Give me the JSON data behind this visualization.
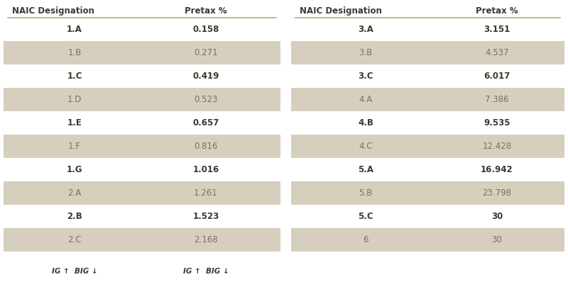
{
  "left_headers": [
    "NAIC Designation",
    "Pretax %"
  ],
  "right_headers": [
    "NAIC Designation",
    "Pretax %"
  ],
  "left_rows": [
    [
      "1.A",
      "0.158"
    ],
    [
      "1.B",
      "0.271"
    ],
    [
      "1.C",
      "0.419"
    ],
    [
      "1.D",
      "0.523"
    ],
    [
      "1.E",
      "0.657"
    ],
    [
      "1.F",
      "0.816"
    ],
    [
      "1.G",
      "1.016"
    ],
    [
      "2.A",
      "1.261"
    ],
    [
      "2.B",
      "1.523"
    ],
    [
      "2.C",
      "2.168"
    ]
  ],
  "right_rows": [
    [
      "3.A",
      "3.151"
    ],
    [
      "3.B",
      "4.537"
    ],
    [
      "3.C",
      "6.017"
    ],
    [
      "4.A",
      "7.386"
    ],
    [
      "4.B",
      "9.535"
    ],
    [
      "4.C",
      "12.428"
    ],
    [
      "5.A",
      "16.942"
    ],
    [
      "5.B",
      "23.798"
    ],
    [
      "5.C",
      "30"
    ],
    [
      "6",
      "30"
    ]
  ],
  "footer_col1": "IG ↑  BIG ↓",
  "footer_col2": "IG ↑  BIG ↓",
  "bg_color": "#ffffff",
  "shaded_color": "#d6cfbe",
  "header_line_color": "#b5a97a",
  "text_color_bold": "#3d3830",
  "text_color_light": "#7a7060",
  "header_font_size": 8.5,
  "row_font_size": 8.5,
  "footer_font_size": 7.5,
  "fig_width": 8.0,
  "fig_height": 4.15,
  "dpi": 100
}
